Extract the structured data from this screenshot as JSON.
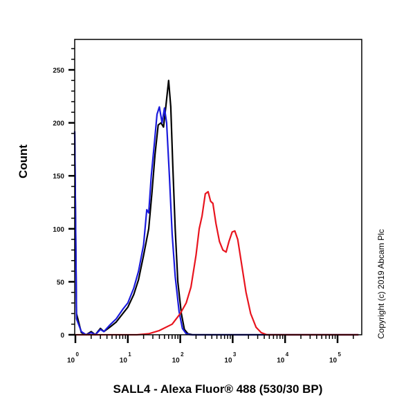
{
  "chart_data": {
    "type": "line",
    "subtype": "flow-cytometry-histogram",
    "title": "",
    "xlabel": "SALL4 - Alexa Fluor® 488 (530/30 BP)",
    "ylabel": "Count",
    "xscale": "log",
    "xlim": [
      1,
      250000
    ],
    "ylim": [
      0,
      280
    ],
    "xticks": [
      {
        "base": "10",
        "exp": "0",
        "value": 1
      },
      {
        "base": "10",
        "exp": "1",
        "value": 10
      },
      {
        "base": "10",
        "exp": "2",
        "value": 100
      },
      {
        "base": "10",
        "exp": "3",
        "value": 1000
      },
      {
        "base": "10",
        "exp": "4",
        "value": 10000
      },
      {
        "base": "10",
        "exp": "5",
        "value": 100000
      }
    ],
    "yticks": [
      "0",
      "50",
      "100",
      "150",
      "200",
      "250"
    ],
    "grid": false,
    "legend": null,
    "annotation": "Copyright (c) 2019 Abcam Plc",
    "series": [
      {
        "name": "black",
        "color": "#000000",
        "points": [
          [
            0.95,
            192
          ],
          [
            1.05,
            20
          ],
          [
            1.3,
            2
          ],
          [
            1.6,
            0
          ],
          [
            2,
            3
          ],
          [
            2.4,
            0
          ],
          [
            3,
            6
          ],
          [
            3.5,
            3
          ],
          [
            4.5,
            7
          ],
          [
            6,
            12
          ],
          [
            8,
            20
          ],
          [
            10,
            26
          ],
          [
            13,
            38
          ],
          [
            16,
            52
          ],
          [
            20,
            75
          ],
          [
            25,
            100
          ],
          [
            29,
            135
          ],
          [
            33,
            170
          ],
          [
            38,
            198
          ],
          [
            43,
            200
          ],
          [
            48,
            196
          ],
          [
            53,
            215
          ],
          [
            60,
            240
          ],
          [
            66,
            215
          ],
          [
            72,
            160
          ],
          [
            80,
            100
          ],
          [
            90,
            50
          ],
          [
            105,
            20
          ],
          [
            120,
            5
          ],
          [
            140,
            1
          ],
          [
            170,
            0
          ],
          [
            250000,
            0
          ]
        ]
      },
      {
        "name": "blue",
        "color": "#1a1adc",
        "points": [
          [
            0.95,
            192
          ],
          [
            1.05,
            15
          ],
          [
            1.3,
            3
          ],
          [
            1.6,
            0
          ],
          [
            2,
            2
          ],
          [
            2.4,
            0
          ],
          [
            3,
            5
          ],
          [
            3.5,
            3
          ],
          [
            4.5,
            9
          ],
          [
            6,
            15
          ],
          [
            8,
            24
          ],
          [
            10,
            30
          ],
          [
            13,
            44
          ],
          [
            16,
            60
          ],
          [
            20,
            85
          ],
          [
            23,
            118
          ],
          [
            25,
            115
          ],
          [
            28,
            150
          ],
          [
            32,
            180
          ],
          [
            36,
            208
          ],
          [
            40,
            215
          ],
          [
            45,
            200
          ],
          [
            50,
            214
          ],
          [
            55,
            200
          ],
          [
            62,
            150
          ],
          [
            70,
            95
          ],
          [
            80,
            55
          ],
          [
            95,
            22
          ],
          [
            110,
            6
          ],
          [
            130,
            1
          ],
          [
            160,
            0
          ],
          [
            250000,
            0
          ]
        ]
      },
      {
        "name": "red",
        "color": "#e8141e",
        "points": [
          [
            0.95,
            0
          ],
          [
            15,
            0
          ],
          [
            25,
            1
          ],
          [
            40,
            4
          ],
          [
            70,
            10
          ],
          [
            100,
            20
          ],
          [
            130,
            30
          ],
          [
            160,
            45
          ],
          [
            200,
            75
          ],
          [
            230,
            100
          ],
          [
            260,
            112
          ],
          [
            300,
            133
          ],
          [
            340,
            135
          ],
          [
            380,
            126
          ],
          [
            420,
            124
          ],
          [
            480,
            105
          ],
          [
            560,
            88
          ],
          [
            650,
            80
          ],
          [
            750,
            78
          ],
          [
            850,
            88
          ],
          [
            980,
            97
          ],
          [
            1100,
            98
          ],
          [
            1250,
            90
          ],
          [
            1500,
            65
          ],
          [
            1800,
            40
          ],
          [
            2200,
            20
          ],
          [
            2800,
            7
          ],
          [
            3500,
            2
          ],
          [
            4500,
            0
          ],
          [
            250000,
            0
          ]
        ]
      }
    ]
  }
}
